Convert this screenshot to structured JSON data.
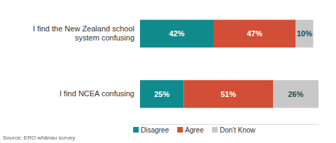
{
  "chart_data": {
    "type": "bar",
    "orientation": "horizontal",
    "stacked": true,
    "data_labels": true,
    "tick_labels": "y",
    "legend": "bottom",
    "categories": [
      "I find the New Zealand school system confusing",
      "I find NCEA confusing"
    ],
    "series": [
      {
        "name": "Disagree",
        "color": "#0f8b8d",
        "values": [
          42,
          25
        ],
        "value_labels": [
          "42%",
          "25%"
        ]
      },
      {
        "name": "Agree",
        "color": "#d24e36",
        "values": [
          47,
          51
        ],
        "value_labels": [
          "47%",
          "51%"
        ]
      },
      {
        "name": "Don't Know",
        "color": "#c8c8c8",
        "values": [
          10,
          26
        ],
        "value_labels": [
          "10%",
          "26%"
        ]
      }
    ],
    "xlim": [
      0,
      102
    ],
    "xticks": [],
    "source": "Source: ERO whānau survey"
  }
}
